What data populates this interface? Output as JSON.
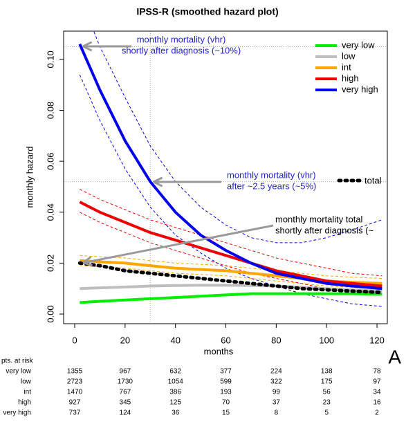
{
  "chart_data": {
    "type": "line",
    "title": "IPSS-R (smoothed hazard plot)",
    "xlabel": "months",
    "ylabel": "monthly hazard",
    "x": [
      2,
      10,
      20,
      30,
      40,
      50,
      60,
      70,
      80,
      90,
      100,
      110,
      122
    ],
    "xlim": [
      -4.4,
      124.1
    ],
    "ylim": [
      -0.0038,
      0.1111
    ],
    "xticks": [
      0,
      20,
      40,
      60,
      80,
      100,
      120
    ],
    "yticks": [
      {
        "value": 0,
        "label": "0.00"
      },
      {
        "value": 0.02,
        "label": "0.02"
      },
      {
        "value": 0.04,
        "label": "0.04"
      },
      {
        "value": 0.06,
        "label": "0.06"
      },
      {
        "value": 0.08,
        "label": "0.08"
      },
      {
        "value": 0.1,
        "label": "0.10"
      }
    ],
    "series": [
      {
        "name": "very low",
        "color": "#00ee00",
        "values": [
          0.0045,
          0.005,
          0.0055,
          0.006,
          0.0065,
          0.007,
          0.0075,
          0.008,
          0.008,
          0.008,
          0.008,
          0.008,
          0.0078
        ]
      },
      {
        "name": "low",
        "color": "#bebebe",
        "values": [
          0.01,
          0.0103,
          0.0106,
          0.011,
          0.0112,
          0.0113,
          0.0113,
          0.0112,
          0.011,
          0.0105,
          0.01,
          0.0095,
          0.009
        ]
      },
      {
        "name": "int",
        "color": "#ffa500",
        "values": [
          0.021,
          0.0205,
          0.02,
          0.019,
          0.018,
          0.0175,
          0.017,
          0.016,
          0.015,
          0.014,
          0.013,
          0.0125,
          0.012
        ],
        "lower": [
          0.019,
          0.0185,
          0.018,
          0.017,
          0.016,
          0.0155,
          0.015,
          0.014,
          0.013,
          0.012,
          0.011,
          0.0105,
          0.01
        ],
        "upper": [
          0.023,
          0.0225,
          0.022,
          0.021,
          0.02,
          0.0195,
          0.019,
          0.018,
          0.017,
          0.016,
          0.015,
          0.0145,
          0.014
        ]
      },
      {
        "name": "high",
        "color": "#ee0000",
        "values": [
          0.044,
          0.04,
          0.036,
          0.032,
          0.029,
          0.026,
          0.023,
          0.02,
          0.017,
          0.015,
          0.013,
          0.012,
          0.011
        ],
        "lower": [
          0.04,
          0.036,
          0.032,
          0.028,
          0.025,
          0.022,
          0.019,
          0.016,
          0.014,
          0.012,
          0.01,
          0.009,
          0.008
        ],
        "upper": [
          0.049,
          0.045,
          0.041,
          0.037,
          0.034,
          0.031,
          0.028,
          0.025,
          0.022,
          0.02,
          0.018,
          0.016,
          0.015
        ]
      },
      {
        "name": "very high",
        "color": "#0000ee",
        "values": [
          0.106,
          0.088,
          0.068,
          0.052,
          0.04,
          0.031,
          0.025,
          0.02,
          0.016,
          0.014,
          0.012,
          0.011,
          0.01
        ],
        "lower": [
          0.094,
          0.076,
          0.057,
          0.042,
          0.031,
          0.024,
          0.018,
          0.014,
          0.011,
          0.008,
          0.006,
          0.004,
          0.003
        ],
        "upper": [
          0.125,
          0.105,
          0.085,
          0.066,
          0.052,
          0.042,
          0.035,
          0.03,
          0.028,
          0.028,
          0.03,
          0.033,
          0.037
        ]
      }
    ],
    "total": {
      "name": "total",
      "color": "#000000",
      "values": [
        0.02,
        0.019,
        0.017,
        0.016,
        0.015,
        0.014,
        0.013,
        0.012,
        0.011,
        0.01,
        0.0095,
        0.009,
        0.0085
      ]
    },
    "hlines": [
      0.105,
      0.052
    ],
    "vlines": [
      30
    ],
    "annotations": [
      [
        "monthly mortality (vhr)",
        "shortly after diagnosis (~10%)"
      ],
      [
        "monthly mortality (vhr)",
        "after ~2.5 years (~5%)"
      ],
      [
        "monthly mortality total",
        "shortly after diagnosis (~"
      ]
    ],
    "panel_label": "A",
    "risk_table": {
      "title": "pts. at risk",
      "rows": [
        {
          "name": "very low",
          "values": [
            1355,
            967,
            632,
            377,
            224,
            138,
            78
          ]
        },
        {
          "name": "low",
          "values": [
            2723,
            1730,
            1054,
            599,
            322,
            175,
            97
          ]
        },
        {
          "name": "int",
          "values": [
            1470,
            767,
            386,
            193,
            99,
            56,
            34
          ]
        },
        {
          "name": "high",
          "values": [
            927,
            345,
            125,
            70,
            37,
            23,
            16
          ]
        },
        {
          "name": "very high",
          "values": [
            737,
            124,
            36,
            15,
            8,
            5,
            2
          ]
        }
      ]
    }
  }
}
